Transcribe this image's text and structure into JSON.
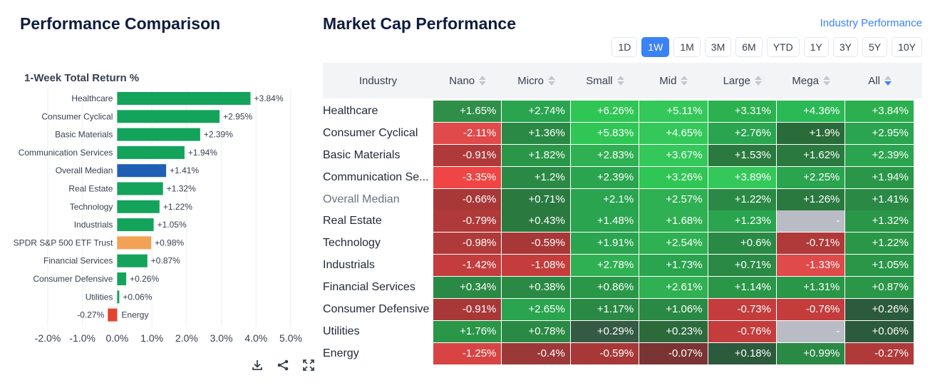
{
  "left_title": "Performance Comparison",
  "right_title": "Market Cap Performance",
  "industry_link": "Industry Performance",
  "chart_data": {
    "type": "bar",
    "orientation": "horizontal",
    "title": "1-Week Total Return %",
    "categories": [
      "Healthcare",
      "Consumer Cyclical",
      "Basic Materials",
      "Communication Services",
      "Overall Median",
      "Real Estate",
      "Technology",
      "Industrials",
      "SPDR S&P 500 ETF Trust",
      "Financial Services",
      "Consumer Defensive",
      "Utilities",
      "Energy"
    ],
    "values": [
      3.84,
      2.95,
      2.39,
      1.94,
      1.41,
      1.32,
      1.22,
      1.05,
      0.98,
      0.87,
      0.26,
      0.06,
      -0.27
    ],
    "value_labels": [
      "+3.84%",
      "+2.95%",
      "+2.39%",
      "+1.94%",
      "+1.41%",
      "+1.32%",
      "+1.22%",
      "+1.05%",
      "+0.98%",
      "+0.87%",
      "+0.26%",
      "+0.06%",
      "-0.27%"
    ],
    "bar_colors": [
      "#13a35b",
      "#13a35b",
      "#13a35b",
      "#13a35b",
      "#1f5fb6",
      "#13a35b",
      "#13a35b",
      "#13a35b",
      "#f2a255",
      "#13a35b",
      "#13a35b",
      "#13a35b",
      "#e2452f"
    ],
    "xlim": [
      -2,
      5
    ],
    "xticks": [
      -2,
      -1,
      0,
      1,
      2,
      3,
      4,
      5
    ],
    "xtick_labels": [
      "-2.0%",
      "-1.0%",
      "0.0%",
      "1.0%",
      "2.0%",
      "3.0%",
      "4.0%",
      "5.0%"
    ],
    "grid": true
  },
  "tools": [
    "download-icon",
    "share-icon",
    "expand-icon"
  ],
  "periods": [
    "1D",
    "1W",
    "1M",
    "3M",
    "6M",
    "YTD",
    "1Y",
    "3Y",
    "5Y",
    "10Y"
  ],
  "active_period": "1W",
  "heatmap": {
    "columns": [
      "Industry",
      "Nano",
      "Micro",
      "Small",
      "Mid",
      "Large",
      "Mega",
      "All"
    ],
    "sorted_column": "All",
    "rows": [
      {
        "label": "Healthcare",
        "cells": [
          "+1.65%",
          "+2.74%",
          "+6.26%",
          "+5.11%",
          "+3.31%",
          "+4.36%",
          "+3.84%"
        ],
        "colors": [
          "#2f8f48",
          "#2aa44f",
          "#2fc655",
          "#34c85a",
          "#2bb14f",
          "#2bb955",
          "#2cb04f"
        ]
      },
      {
        "label": "Consumer Cyclical",
        "cells": [
          "-2.11%",
          "+1.36%",
          "+5.83%",
          "+4.65%",
          "+2.76%",
          "+1.9%",
          "+2.95%"
        ],
        "colors": [
          "#e04a4a",
          "#2a8a45",
          "#2fc655",
          "#34c85a",
          "#2aa44f",
          "#2a6b3a",
          "#2aa44f"
        ]
      },
      {
        "label": "Basic Materials",
        "cells": [
          "-0.91%",
          "+1.82%",
          "+2.83%",
          "+3.67%",
          "+1.53%",
          "+1.62%",
          "+2.39%"
        ],
        "colors": [
          "#b03a3a",
          "#2a9648",
          "#2fb052",
          "#34c85a",
          "#2a7a40",
          "#2a7a40",
          "#2aa44f"
        ]
      },
      {
        "label": "Communication Services",
        "label_display": "Communication Se...",
        "cells": [
          "-3.35%",
          "+1.2%",
          "+2.39%",
          "+3.26%",
          "+3.89%",
          "+2.25%",
          "+1.94%"
        ],
        "colors": [
          "#f04545",
          "#2a8a45",
          "#2aa44f",
          "#2fc655",
          "#34c85a",
          "#2aa44f",
          "#2a9648"
        ]
      },
      {
        "label": "Overall Median",
        "muted": true,
        "cells": [
          "-0.66%",
          "+0.71%",
          "+2.1%",
          "+2.57%",
          "+1.22%",
          "+1.26%",
          "+1.41%"
        ],
        "colors": [
          "#a83838",
          "#2a7a40",
          "#2aa44f",
          "#2fb052",
          "#2a8a45",
          "#2a7a40",
          "#2a8a45"
        ]
      },
      {
        "label": "Real Estate",
        "cells": [
          "-0.79%",
          "+0.43%",
          "+1.48%",
          "+1.68%",
          "+1.23%",
          "-",
          "+1.32%"
        ],
        "colors": [
          "#b03a3a",
          "#2a7a40",
          "#2aa44f",
          "#2fb052",
          "#2aa44f",
          "#b9bcc4",
          "#2a9648"
        ]
      },
      {
        "label": "Technology",
        "cells": [
          "-0.98%",
          "-0.59%",
          "+1.91%",
          "+2.54%",
          "+0.6%",
          "-0.71%",
          "+1.22%"
        ],
        "colors": [
          "#b03a3a",
          "#a83838",
          "#2aa44f",
          "#2fb052",
          "#2a8a45",
          "#b03a3a",
          "#2a9648"
        ]
      },
      {
        "label": "Industrials",
        "cells": [
          "-1.42%",
          "-1.08%",
          "+2.78%",
          "+1.73%",
          "+0.71%",
          "-1.33%",
          "+1.05%"
        ],
        "colors": [
          "#c43c3c",
          "#c43c3c",
          "#2fb052",
          "#2aa44f",
          "#2a8a45",
          "#e04a4a",
          "#2a9648"
        ]
      },
      {
        "label": "Financial Services",
        "cells": [
          "+0.34%",
          "+0.38%",
          "+0.86%",
          "+2.61%",
          "+1.14%",
          "+1.31%",
          "+0.87%"
        ],
        "colors": [
          "#2a8a45",
          "#2a8a45",
          "#2a9648",
          "#2fb052",
          "#2a9648",
          "#2a9648",
          "#2a9648"
        ]
      },
      {
        "label": "Consumer Defensive",
        "cells": [
          "-0.91%",
          "+2.65%",
          "+1.17%",
          "+1.06%",
          "-0.73%",
          "-0.76%",
          "+0.26%"
        ],
        "colors": [
          "#a83838",
          "#2aa44f",
          "#2a8a45",
          "#2a8a45",
          "#c43c3c",
          "#c43c3c",
          "#2c5a3c"
        ]
      },
      {
        "label": "Utilities",
        "cells": [
          "+1.76%",
          "+0.78%",
          "+0.29%",
          "+0.23%",
          "-0.76%",
          "-",
          "+0.06%"
        ],
        "colors": [
          "#2a9648",
          "#2a8a45",
          "#355a43",
          "#2c6a3c",
          "#c43c3c",
          "#b9bcc4",
          "#2c5a3c"
        ]
      },
      {
        "label": "Energy",
        "cells": [
          "-1.25%",
          "-0.4%",
          "-0.59%",
          "-0.07%",
          "+0.18%",
          "+0.99%",
          "-0.27%"
        ],
        "colors": [
          "#d84444",
          "#9b3838",
          "#a83838",
          "#7a3434",
          "#2c5a3c",
          "#2a8a45",
          "#b03a3a"
        ]
      }
    ]
  }
}
